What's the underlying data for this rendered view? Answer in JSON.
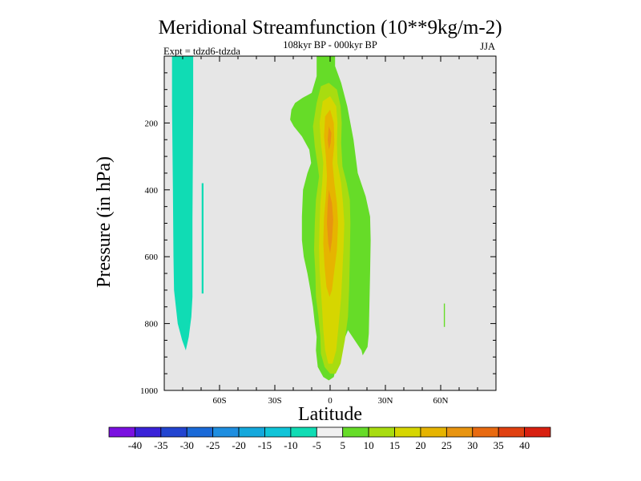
{
  "chart_data": {
    "type": "filled-contour",
    "title": "Meridional Streamfunction (10**9kg/m-2)",
    "subtitle": "108kyr BP - 000kyr BP",
    "left_label": "Expt = tdzd6-tdzda",
    "right_label": "JJA",
    "xlabel": "Latitude",
    "ylabel": "Pressure (in hPa)",
    "xlim": [
      -90,
      90
    ],
    "ylim": [
      1000,
      0
    ],
    "x_ticks": [
      {
        "value": -60,
        "label": "60S"
      },
      {
        "value": -30,
        "label": "30S"
      },
      {
        "value": 0,
        "label": "0"
      },
      {
        "value": 30,
        "label": "30N"
      },
      {
        "value": 60,
        "label": "60N"
      }
    ],
    "y_ticks": [
      {
        "value": 200,
        "label": "200"
      },
      {
        "value": 400,
        "label": "400"
      },
      {
        "value": 600,
        "label": "600"
      },
      {
        "value": 800,
        "label": "800"
      },
      {
        "value": 1000,
        "label": "1000"
      }
    ],
    "background_color": "#e6e6e6",
    "colorbar": {
      "levels": [
        "-40",
        "-35",
        "-30",
        "-25",
        "-20",
        "-15",
        "-10",
        "-5",
        "5",
        "10",
        "15",
        "20",
        "25",
        "30",
        "35",
        "40"
      ],
      "colors": [
        "#7a10e0",
        "#3a22d8",
        "#2244d0",
        "#1a6ad8",
        "#1e8ee0",
        "#14a8dc",
        "#10c4d8",
        "#10dcb4",
        "#f0f0f0",
        "#66dc28",
        "#a8dc10",
        "#d6d600",
        "#e6b400",
        "#e89410",
        "#e86a10",
        "#e04010",
        "#d82010"
      ]
    },
    "regions": [
      {
        "name": "negative-band-southern-polar",
        "level": "-10 to -5",
        "color": "#10dcb4",
        "polygon": [
          [
            -85.8,
            1
          ],
          [
            -74.3,
            1
          ],
          [
            -74.3,
            170
          ],
          [
            -74.7,
            490
          ],
          [
            -74.7,
            720
          ],
          [
            -75.3,
            780
          ],
          [
            -76.7,
            840
          ],
          [
            -78.3,
            880
          ],
          [
            -80.3,
            850
          ],
          [
            -82.7,
            800
          ],
          [
            -83.7,
            750
          ],
          [
            -84.7,
            700
          ],
          [
            -85,
            600
          ],
          [
            -85.3,
            400
          ],
          [
            -85.8,
            150
          ]
        ]
      },
      {
        "name": "negative-band-thin-streak",
        "level": "-10 to -5",
        "color": "#10dcb4",
        "polygon": [
          [
            -69.7,
            380
          ],
          [
            -68.7,
            380
          ],
          [
            -68.7,
            710
          ],
          [
            -69.7,
            710
          ]
        ]
      },
      {
        "name": "positive-band-5-10",
        "level": "5 to 10",
        "color": "#66dc28",
        "polygon": [
          [
            -7.3,
            1
          ],
          [
            2.7,
            1
          ],
          [
            2.7,
            30
          ],
          [
            6,
            80
          ],
          [
            9.3,
            150
          ],
          [
            12.7,
            250
          ],
          [
            15,
            350
          ],
          [
            19.3,
            420
          ],
          [
            21.7,
            480
          ],
          [
            22,
            550
          ],
          [
            21.7,
            650
          ],
          [
            21.3,
            750
          ],
          [
            21,
            830
          ],
          [
            20.3,
            870
          ],
          [
            17.7,
            895
          ],
          [
            17,
            880
          ],
          [
            9.7,
            820
          ],
          [
            5.3,
            880
          ],
          [
            3.3,
            930
          ],
          [
            2,
            960
          ],
          [
            -0.7,
            970
          ],
          [
            -3.7,
            960
          ],
          [
            -6.7,
            930
          ],
          [
            -7.7,
            880
          ],
          [
            -7.3,
            840
          ],
          [
            -8.3,
            800
          ],
          [
            -9.3,
            750
          ],
          [
            -10.7,
            700
          ],
          [
            -12.3,
            650
          ],
          [
            -14.3,
            600
          ],
          [
            -15.3,
            550
          ],
          [
            -15.3,
            480
          ],
          [
            -14.7,
            400
          ],
          [
            -12.3,
            350
          ],
          [
            -10.3,
            320
          ],
          [
            -11.3,
            280
          ],
          [
            -15.3,
            240
          ],
          [
            -19.7,
            210
          ],
          [
            -21.7,
            190
          ],
          [
            -21,
            160
          ],
          [
            -19,
            140
          ],
          [
            -15,
            125
          ],
          [
            -10,
            110
          ],
          [
            -7.3,
            60
          ]
        ]
      },
      {
        "name": "positive-band-10-15",
        "level": "10 to 15",
        "color": "#a8dc10",
        "polygon": [
          [
            -5,
            90
          ],
          [
            -0.7,
            80
          ],
          [
            3.7,
            100
          ],
          [
            5.7,
            150
          ],
          [
            6.3,
            200
          ],
          [
            6,
            260
          ],
          [
            6.7,
            330
          ],
          [
            9,
            380
          ],
          [
            10.7,
            430
          ],
          [
            11,
            500
          ],
          [
            10.7,
            600
          ],
          [
            10.3,
            700
          ],
          [
            9.7,
            780
          ],
          [
            8,
            850
          ],
          [
            5.7,
            920
          ],
          [
            3,
            950
          ],
          [
            0,
            950
          ],
          [
            -3,
            930
          ],
          [
            -5,
            890
          ],
          [
            -5.3,
            840
          ],
          [
            -6.3,
            780
          ],
          [
            -7.7,
            720
          ],
          [
            -8,
            650
          ],
          [
            -8.7,
            580
          ],
          [
            -8.3,
            500
          ],
          [
            -7.7,
            430
          ],
          [
            -6,
            360
          ],
          [
            -6.7,
            330
          ],
          [
            -8.3,
            270
          ],
          [
            -9.3,
            210
          ],
          [
            -7.3,
            140
          ]
        ]
      },
      {
        "name": "positive-band-15-20",
        "level": "15 to 20",
        "color": "#d6d600",
        "polygon": [
          [
            -4,
            135
          ],
          [
            0,
            120
          ],
          [
            3.3,
            150
          ],
          [
            4,
            200
          ],
          [
            3.7,
            260
          ],
          [
            4,
            320
          ],
          [
            6,
            380
          ],
          [
            7,
            440
          ],
          [
            7.7,
            500
          ],
          [
            7.3,
            570
          ],
          [
            6.7,
            640
          ],
          [
            6,
            720
          ],
          [
            4.7,
            800
          ],
          [
            3.3,
            880
          ],
          [
            1.3,
            920
          ],
          [
            -1,
            920
          ],
          [
            -2.7,
            880
          ],
          [
            -3.7,
            820
          ],
          [
            -4.3,
            760
          ],
          [
            -5,
            700
          ],
          [
            -5.7,
            640
          ],
          [
            -6,
            570
          ],
          [
            -5.7,
            500
          ],
          [
            -5.3,
            440
          ],
          [
            -4.3,
            380
          ],
          [
            -3.7,
            320
          ],
          [
            -5,
            260
          ],
          [
            -5.7,
            200
          ]
        ]
      },
      {
        "name": "positive-band-20-25",
        "level": "20 to 25",
        "color": "#e6b400",
        "polygon": [
          [
            -2.7,
            180
          ],
          [
            0,
            160
          ],
          [
            2,
            200
          ],
          [
            2.3,
            260
          ],
          [
            1.3,
            320
          ],
          [
            2.3,
            380
          ],
          [
            3.7,
            440
          ],
          [
            4.3,
            500
          ],
          [
            3.7,
            580
          ],
          [
            2.3,
            640
          ],
          [
            1,
            700
          ],
          [
            -0.3,
            720
          ],
          [
            -2,
            690
          ],
          [
            -3,
            630
          ],
          [
            -3.7,
            560
          ],
          [
            -3.3,
            480
          ],
          [
            -2.3,
            420
          ],
          [
            -1.7,
            360
          ],
          [
            -2.3,
            300
          ],
          [
            -3.3,
            240
          ]
        ]
      },
      {
        "name": "positive-band-25-30",
        "level": "25 to 30",
        "color": "#e89410",
        "polygon": [
          [
            -0.7,
            210
          ],
          [
            0.7,
            230
          ],
          [
            0.3,
            260
          ],
          [
            -0.7,
            280
          ],
          [
            -1.3,
            250
          ]
        ]
      },
      {
        "name": "positive-band-25-30-lower",
        "level": "25 to 30",
        "color": "#e89410",
        "polygon": [
          [
            -0.7,
            400
          ],
          [
            1,
            440
          ],
          [
            1.7,
            490
          ],
          [
            1,
            550
          ],
          [
            0,
            590
          ],
          [
            -1,
            560
          ],
          [
            -1.7,
            500
          ],
          [
            -1.3,
            440
          ]
        ]
      },
      {
        "name": "positive-band-northern-streak",
        "level": "5 to 10",
        "color": "#66dc28",
        "polygon": [
          [
            61.7,
            740
          ],
          [
            62.3,
            740
          ],
          [
            62.3,
            810
          ],
          [
            61.7,
            810
          ]
        ]
      }
    ]
  }
}
